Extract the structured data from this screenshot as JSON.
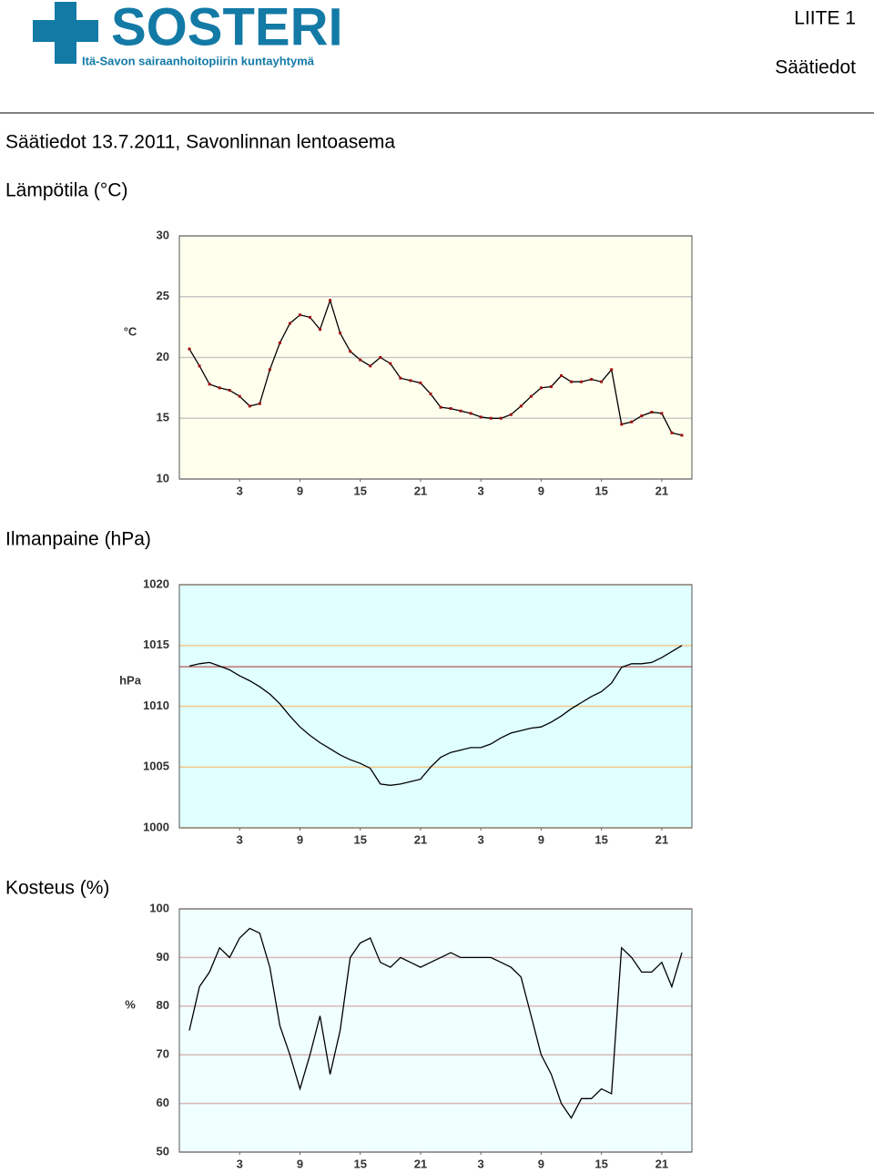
{
  "header": {
    "logo": "SOSTERI",
    "logo_subtitle": "Itä-Savon sairaanhoitopiirin kuntayhtymä",
    "appendix": "LIITE 1",
    "section": "Säätiedot"
  },
  "title": "Säätiedot 13.7.2011, Savonlinnan lentoasema",
  "chart_data": [
    {
      "type": "line",
      "title": "Lämpötila (°C)",
      "ylabel": "°C",
      "background": "#ffffee",
      "grid": true,
      "grid_color": "#c8c8c8",
      "color": "#000000",
      "markers": true,
      "marker_color": "#a01010",
      "x": [
        -2,
        -1,
        0,
        1,
        2,
        3,
        4,
        5,
        6,
        7,
        8,
        9,
        10,
        11,
        12,
        13,
        14,
        15,
        16,
        17,
        18,
        19,
        20,
        21,
        22,
        23,
        24,
        25,
        26,
        27,
        28,
        29,
        30,
        31,
        32,
        33,
        34,
        35,
        36,
        37,
        38,
        39,
        40,
        41,
        42,
        43,
        44,
        45,
        46,
        47
      ],
      "values": [
        20.7,
        19.3,
        17.8,
        17.5,
        17.3,
        16.8,
        16.0,
        16.2,
        19.0,
        21.2,
        22.8,
        23.5,
        23.3,
        22.3,
        24.7,
        22.0,
        20.5,
        19.8,
        19.3,
        20.0,
        19.5,
        18.3,
        18.1,
        17.9,
        17.0,
        15.9,
        15.8,
        15.6,
        15.4,
        15.1,
        15.0,
        15.0,
        15.3,
        16.0,
        16.8,
        17.5,
        17.6,
        18.5,
        18.0,
        18.0,
        18.2,
        18.0,
        19.0,
        14.5,
        14.7,
        15.2,
        15.5,
        15.4,
        13.8,
        13.6
      ],
      "xlim": [
        -3,
        48
      ],
      "xticks": [
        3,
        9,
        15,
        21,
        {
          "value": 27,
          "label": "3"
        },
        {
          "value": 33,
          "label": "9"
        },
        {
          "value": 39,
          "label": "15"
        },
        {
          "value": 45,
          "label": "21"
        }
      ],
      "ylim": [
        10,
        30
      ],
      "yticks": [
        10,
        15,
        20,
        25,
        30
      ]
    },
    {
      "type": "line",
      "title": "Ilmanpaine (hPa)",
      "ylabel": "hPa",
      "background": "#e0ffff",
      "grid": true,
      "grid_color": "#f0c890",
      "color": "#000000",
      "reference_line": 1013.25,
      "reference_color": "#c07070",
      "x": [
        -2,
        -1,
        0,
        1,
        2,
        3,
        4,
        5,
        6,
        7,
        8,
        9,
        10,
        11,
        12,
        13,
        14,
        15,
        16,
        17,
        18,
        19,
        20,
        21,
        22,
        23,
        24,
        25,
        26,
        27,
        28,
        29,
        30,
        31,
        32,
        33,
        34,
        35,
        36,
        37,
        38,
        39,
        40,
        41,
        42,
        43,
        44,
        45,
        46,
        47
      ],
      "values": [
        1013.3,
        1013.5,
        1013.6,
        1013.3,
        1013.0,
        1012.5,
        1012.1,
        1011.6,
        1011.0,
        1010.2,
        1009.2,
        1008.3,
        1007.6,
        1007.0,
        1006.5,
        1006.0,
        1005.6,
        1005.3,
        1004.9,
        1003.6,
        1003.5,
        1003.6,
        1003.8,
        1004.0,
        1005.0,
        1005.8,
        1006.2,
        1006.4,
        1006.6,
        1006.6,
        1006.9,
        1007.4,
        1007.8,
        1008.0,
        1008.2,
        1008.3,
        1008.7,
        1009.2,
        1009.8,
        1010.3,
        1010.8,
        1011.2,
        1011.9,
        1013.2,
        1013.5,
        1013.5,
        1013.6,
        1014.0,
        1014.5,
        1015.0
      ],
      "xlim": [
        -3,
        48
      ],
      "xticks": [
        3,
        9,
        15,
        21,
        {
          "value": 27,
          "label": "3"
        },
        {
          "value": 33,
          "label": "9"
        },
        {
          "value": 39,
          "label": "15"
        },
        {
          "value": 45,
          "label": "21"
        }
      ],
      "ylim": [
        1000,
        1020
      ],
      "yticks": [
        1000,
        1005,
        1010,
        1015,
        1020
      ]
    },
    {
      "type": "line",
      "title": "Kosteus (%)",
      "ylabel": "%",
      "background": "#f0ffff",
      "grid": true,
      "grid_color": "#d8b8b8",
      "color": "#000000",
      "x": [
        -2,
        -1,
        0,
        1,
        2,
        3,
        4,
        5,
        6,
        7,
        8,
        9,
        10,
        11,
        12,
        13,
        14,
        15,
        16,
        17,
        18,
        19,
        20,
        21,
        22,
        23,
        24,
        25,
        26,
        27,
        28,
        29,
        30,
        31,
        32,
        33,
        34,
        35,
        36,
        37,
        38,
        39,
        40,
        41,
        42,
        43,
        44,
        45,
        46,
        47
      ],
      "values": [
        75,
        84,
        87,
        92,
        90,
        94,
        96,
        95,
        88,
        76,
        70,
        63,
        70,
        78,
        66,
        75,
        90,
        93,
        94,
        89,
        88,
        90,
        89,
        88,
        89,
        90,
        91,
        90,
        90,
        90,
        90,
        89,
        88,
        86,
        78,
        70,
        66,
        60,
        57,
        61,
        61,
        63,
        62,
        92,
        90,
        87,
        87,
        89,
        84,
        91
      ],
      "xlim": [
        -3,
        48
      ],
      "xticks": [
        3,
        9,
        15,
        21,
        {
          "value": 27,
          "label": "3"
        },
        {
          "value": 33,
          "label": "9"
        },
        {
          "value": 39,
          "label": "15"
        },
        {
          "value": 45,
          "label": "21"
        }
      ],
      "ylim": [
        50,
        100
      ],
      "yticks": [
        50,
        60,
        70,
        80,
        90,
        100
      ]
    }
  ]
}
